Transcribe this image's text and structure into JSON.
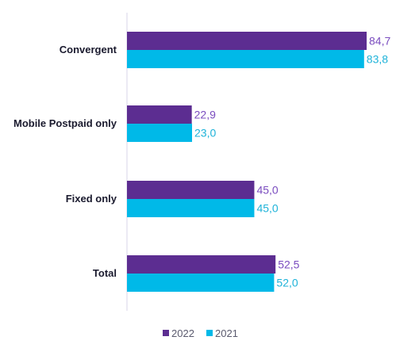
{
  "chart_data": {
    "type": "bar",
    "orientation": "horizontal",
    "categories": [
      "Convergent",
      "Mobile Postpaid only",
      "Fixed only",
      "Total"
    ],
    "series": [
      {
        "name": "2022",
        "color": "#5c2d91",
        "values": [
          84.7,
          22.9,
          45.0,
          52.5
        ],
        "labels": [
          "84,7",
          "22,9",
          "45,0",
          "52,5"
        ]
      },
      {
        "name": "2021",
        "color": "#00b9e8",
        "values": [
          83.8,
          23.0,
          45.0,
          52.0
        ],
        "labels": [
          "83,8",
          "23,0",
          "45,0",
          "52,0"
        ]
      }
    ],
    "xlim": [
      0,
      100
    ],
    "grid": false,
    "legend_position": "bottom"
  }
}
